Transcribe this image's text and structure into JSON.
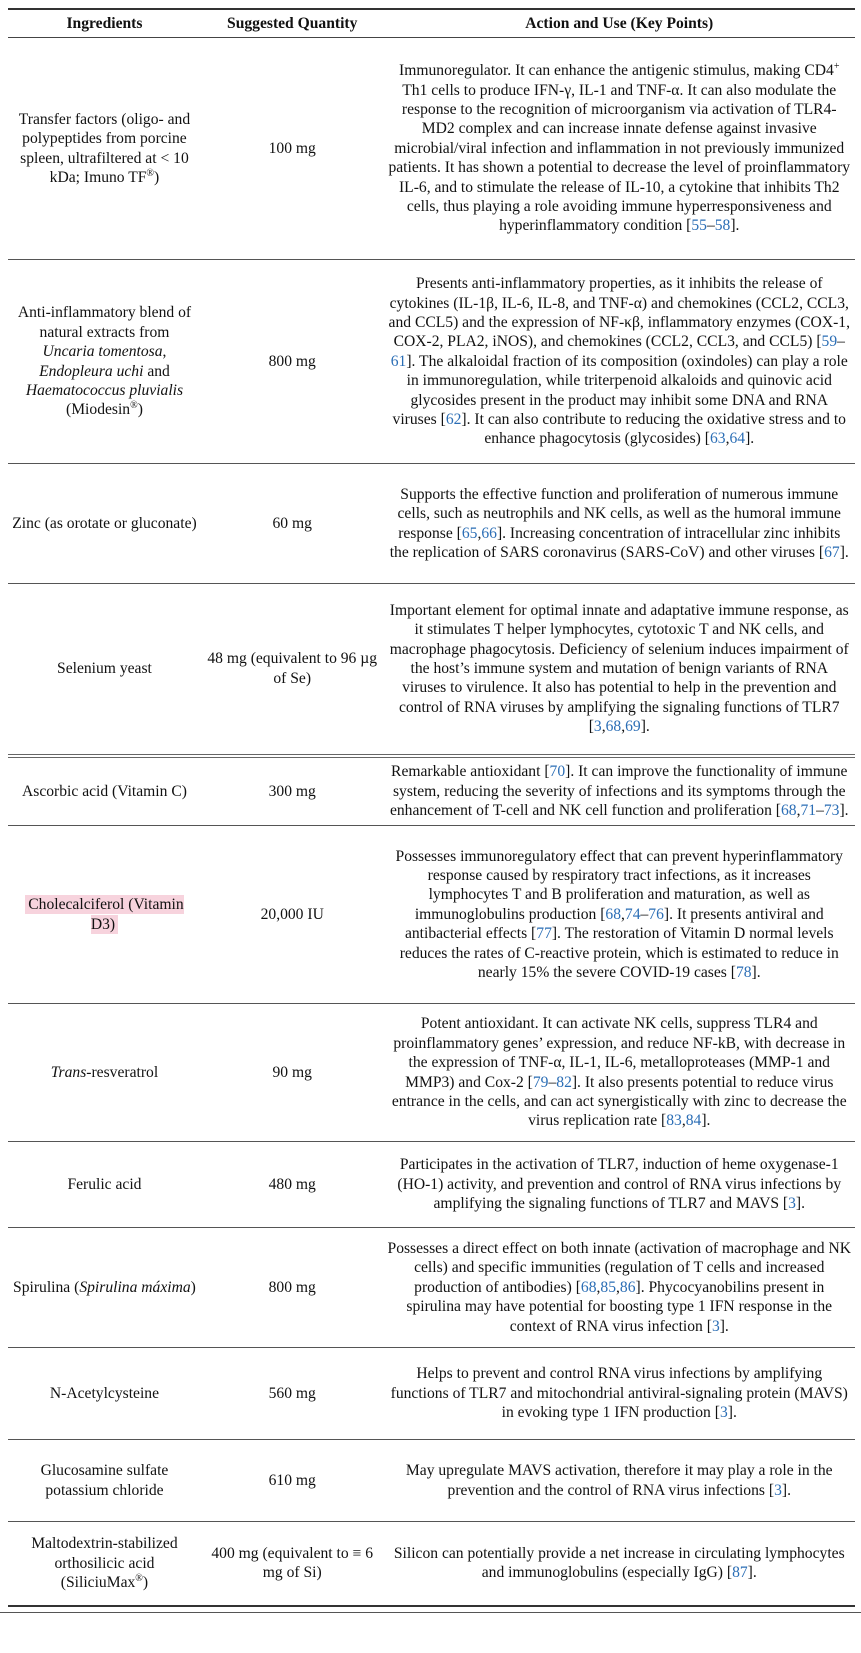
{
  "headers": [
    "Ingredients",
    "Suggested Quantity",
    "Action and Use (Key Points)"
  ],
  "colors": {
    "reference_link": "#2a6db5",
    "highlight": "#f7d3dd"
  },
  "rows": [
    {
      "ingredient": [
        {
          "t": "Transfer factors (oligo- and polypeptides from porcine spleen, ultrafiltered at < 10 kDa; Imuno TF"
        },
        {
          "sup": "®"
        },
        {
          "t": ")"
        }
      ],
      "quantity": "100 mg",
      "action": [
        {
          "t": "Immunoregulator. It can enhance the antigenic stimulus, making CD4"
        },
        {
          "sup": "+"
        },
        {
          "t": " Th1 cells to produce IFN-γ, IL-1 and TNF-α. It can also modulate the response to the recognition of microorganism via activation of TLR4-MD2 complex and can increase innate defense against invasive microbial/viral infection and inflammation in not previously immunized patients. It has shown a potential to decrease the level of proinflammatory IL-6, and to stimulate the release of IL-10, a cytokine that inhibits Th2 cells, thus playing a role avoiding immune hyperresponsiveness and hyperinflammatory condition ["
        },
        {
          "r": "55"
        },
        {
          "t": "–"
        },
        {
          "r": "58"
        },
        {
          "t": "]."
        }
      ]
    },
    {
      "ingredient": [
        {
          "t": "Anti-inflammatory blend of natural extracts from "
        },
        {
          "i": "Uncaria tomentosa"
        },
        {
          "t": ", "
        },
        {
          "i": "Endopleura uchi"
        },
        {
          "t": " and "
        },
        {
          "i": "Haematococcus pluvialis"
        },
        {
          "t": " (Miodesin"
        },
        {
          "sup": "®"
        },
        {
          "t": ")"
        }
      ],
      "quantity": "800 mg",
      "action": [
        {
          "t": "Presents anti-inflammatory properties, as it inhibits the release of cytokines (IL-1β, IL-6, IL-8, and TNF-α) and chemokines (CCL2, CCL3, and CCL5) and the expression of NF-κβ, inflammatory enzymes (COX-1, COX-2, PLA2, iNOS), and chemokines (CCL2, CCL3, and CCL5) ["
        },
        {
          "r": "59"
        },
        {
          "t": "–"
        },
        {
          "r": "61"
        },
        {
          "t": "]. The alkaloidal fraction of its composition (oxindoles) can play a role in immunoregulation, while triterpenoid alkaloids and quinovic acid glycosides present in the product may inhibit some DNA and RNA viruses ["
        },
        {
          "r": "62"
        },
        {
          "t": "]. It can also contribute to reducing the oxidative stress and to enhance phagocytosis (glycosides) ["
        },
        {
          "r": "63"
        },
        {
          "t": ","
        },
        {
          "r": "64"
        },
        {
          "t": "]."
        }
      ]
    },
    {
      "ingredient": [
        {
          "t": "Zinc (as orotate or gluconate)"
        }
      ],
      "quantity": "60 mg",
      "action": [
        {
          "t": "Supports the effective function and proliferation of numerous immune cells, such as neutrophils and NK cells, as well as the humoral immune response ["
        },
        {
          "r": "65"
        },
        {
          "t": ","
        },
        {
          "r": "66"
        },
        {
          "t": "]. Increasing concentration of intracellular zinc inhibits the replication of SARS coronavirus (SARS-CoV) and other viruses ["
        },
        {
          "r": "67"
        },
        {
          "t": "]."
        }
      ]
    },
    {
      "ingredient": [
        {
          "t": "Selenium yeast"
        }
      ],
      "quantity": "48 mg (equivalent to 96 µg of Se)",
      "action": [
        {
          "t": "Important element for optimal innate and adaptative immune response, as it stimulates T helper lymphocytes, cytotoxic T and NK cells, and macrophage phagocytosis. Deficiency of selenium induces impairment of the host’s immune system and mutation of benign variants of RNA viruses to virulence. It also has potential to help in the prevention and control of RNA viruses by amplifying the signaling functions of TLR7 ["
        },
        {
          "r": "3"
        },
        {
          "t": ","
        },
        {
          "r": "68"
        },
        {
          "t": ","
        },
        {
          "r": "69"
        },
        {
          "t": "]."
        }
      ]
    },
    {
      "ingredient": [
        {
          "t": "Ascorbic acid (Vitamin C)"
        }
      ],
      "quantity": "300 mg",
      "action": [
        {
          "t": "Remarkable antioxidant ["
        },
        {
          "r": "70"
        },
        {
          "t": "]. It can improve the functionality of immune system, reducing the severity of infections and its symptoms through the enhancement of T-cell and NK cell function and proliferation ["
        },
        {
          "r": "68"
        },
        {
          "t": ","
        },
        {
          "r": "71"
        },
        {
          "t": "–"
        },
        {
          "r": "73"
        },
        {
          "t": "]."
        }
      ]
    },
    {
      "ingredient": [
        {
          "h": "Cholecalciferol (Vitamin D3)"
        }
      ],
      "quantity": "20,000 IU",
      "action": [
        {
          "t": "Possesses immunoregulatory effect that can prevent hyperinflammatory response caused by respiratory tract infections, as it increases lymphocytes T and B proliferation and maturation, as well as immunoglobulins production ["
        },
        {
          "r": "68"
        },
        {
          "t": ","
        },
        {
          "r": "74"
        },
        {
          "t": "–"
        },
        {
          "r": "76"
        },
        {
          "t": "]. It presents antiviral and antibacterial effects ["
        },
        {
          "r": "77"
        },
        {
          "t": "]. The restoration of Vitamin D normal levels reduces the rates of C-reactive protein, which is estimated to reduce in nearly 15% the severe COVID-19 cases ["
        },
        {
          "r": "78"
        },
        {
          "t": "]."
        }
      ]
    },
    {
      "ingredient": [
        {
          "i": "Trans"
        },
        {
          "t": "-resveratrol"
        }
      ],
      "quantity": "90 mg",
      "action": [
        {
          "t": "Potent antioxidant. It can activate NK cells, suppress TLR4 and proinflammatory genes’ expression, and reduce NF-kB, with decrease in the expression of TNF-α, IL-1, IL-6, metalloproteases (MMP-1 and MMP3) and Cox-2 ["
        },
        {
          "r": "79"
        },
        {
          "t": "–"
        },
        {
          "r": "82"
        },
        {
          "t": "]. It also presents potential to reduce virus entrance in the cells, and can act synergistically with zinc to decrease the virus replication rate ["
        },
        {
          "r": "83"
        },
        {
          "t": ","
        },
        {
          "r": "84"
        },
        {
          "t": "]."
        }
      ]
    },
    {
      "ingredient": [
        {
          "t": "Ferulic acid"
        }
      ],
      "quantity": "480 mg",
      "action": [
        {
          "t": "Participates in the activation of TLR7, induction of heme oxygenase-1 (HO-1) activity, and prevention and control of RNA virus infections by amplifying the signaling functions of TLR7 and MAVS ["
        },
        {
          "r": "3"
        },
        {
          "t": "]."
        }
      ]
    },
    {
      "ingredient": [
        {
          "t": "Spirulina ("
        },
        {
          "i": "Spirulina máxima"
        },
        {
          "t": ")"
        }
      ],
      "quantity": "800 mg",
      "action": [
        {
          "t": "Possesses a direct effect on both innate (activation of macrophage and NK cells) and specific immunities (regulation of T cells and increased production of antibodies) ["
        },
        {
          "r": "68"
        },
        {
          "t": ","
        },
        {
          "r": "85"
        },
        {
          "t": ","
        },
        {
          "r": "86"
        },
        {
          "t": "]. Phycocyanobilins present in spirulina may have potential for boosting type 1 IFN response in the context of RNA virus infection ["
        },
        {
          "r": "3"
        },
        {
          "t": "]."
        }
      ]
    },
    {
      "ingredient": [
        {
          "t": "N-Acetylcysteine"
        }
      ],
      "quantity": "560 mg",
      "action": [
        {
          "t": "Helps to prevent and control RNA virus infections by amplifying functions of TLR7 and mitochondrial antiviral-signaling protein (MAVS) in evoking type 1 IFN production ["
        },
        {
          "r": "3"
        },
        {
          "t": "]."
        }
      ]
    },
    {
      "ingredient": [
        {
          "t": "Glucosamine sulfate potassium chloride"
        }
      ],
      "quantity": "610 mg",
      "action": [
        {
          "t": "May upregulate MAVS activation, therefore it may play a role in the prevention and the control of RNA virus infections ["
        },
        {
          "r": "3"
        },
        {
          "t": "]."
        }
      ]
    },
    {
      "ingredient": [
        {
          "t": "Maltodextrin-stabilized orthosilicic acid (SiliciuMax"
        },
        {
          "sup": "®"
        },
        {
          "t": ")"
        }
      ],
      "quantity": "400 mg (equivalent to ≡ 6 mg of Si)",
      "action": [
        {
          "t": "Silicon can potentially provide a net increase in circulating lymphocytes and immunoglobulins (especially IgG) ["
        },
        {
          "r": "87"
        },
        {
          "t": "]."
        }
      ]
    }
  ]
}
